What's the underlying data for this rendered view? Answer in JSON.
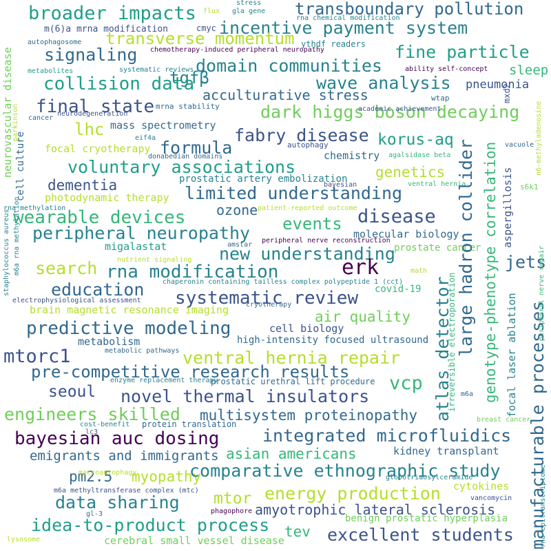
{
  "palette": {
    "dark_purple": "#440154",
    "indigo": "#3b528b",
    "blue": "#31688e",
    "teal": "#26828e",
    "green": "#1f9e89",
    "bright_green": "#35b779",
    "lime": "#6ece58",
    "light_lime": "#b5de2b",
    "yellow": "#fde725"
  },
  "words": [
    {
      "text": "broader impacts",
      "color": "#1f9e89"
    },
    {
      "text": "transboundary pollution",
      "color": "#31688e"
    },
    {
      "text": "incentive payment system",
      "color": "#26828e"
    },
    {
      "text": "transverse momentum",
      "color": "#b5de2b"
    },
    {
      "text": "fine particle",
      "color": "#1f9e89"
    },
    {
      "text": "signaling",
      "color": "#31688e"
    },
    {
      "text": "domain communities",
      "color": "#26828e"
    },
    {
      "text": "tgfβ",
      "color": "#26828e"
    },
    {
      "text": "collision data",
      "color": "#1f9e89"
    },
    {
      "text": "wave analysis",
      "color": "#26828e"
    },
    {
      "text": "acculturative stress",
      "color": "#31688e"
    },
    {
      "text": "final state",
      "color": "#3b528b"
    },
    {
      "text": "dark higgs boson decaying",
      "color": "#6ece58"
    },
    {
      "text": "lhc",
      "color": "#b5de2b"
    },
    {
      "text": "fabry disease",
      "color": "#3b528b"
    },
    {
      "text": "korus-aq",
      "color": "#1f9e89"
    },
    {
      "text": "formula",
      "color": "#31688e"
    },
    {
      "text": "voluntary associations",
      "color": "#1f9e89"
    },
    {
      "text": "genetics",
      "color": "#b5de2b"
    },
    {
      "text": "dementia",
      "color": "#3b528b"
    },
    {
      "text": "limited understanding",
      "color": "#31688e"
    },
    {
      "text": "ozone",
      "color": "#31688e"
    },
    {
      "text": "wearable devices",
      "color": "#35b779"
    },
    {
      "text": "events",
      "color": "#35b779"
    },
    {
      "text": "disease",
      "color": "#3b528b"
    },
    {
      "text": "peripheral neuropathy",
      "color": "#26828e"
    },
    {
      "text": "new understanding",
      "color": "#26828e"
    },
    {
      "text": "search",
      "color": "#b5de2b"
    },
    {
      "text": "rna modification",
      "color": "#26828e"
    },
    {
      "text": "erk",
      "color": "#440154"
    },
    {
      "text": "education",
      "color": "#31688e"
    },
    {
      "text": "systematic review",
      "color": "#3b528b"
    },
    {
      "text": "predictive modeling",
      "color": "#31688e"
    },
    {
      "text": "air quality",
      "color": "#6ece58"
    },
    {
      "text": "mtorc1",
      "color": "#3b528b"
    },
    {
      "text": "ventral hernia repair",
      "color": "#b5de2b"
    },
    {
      "text": "pre-competitive research results",
      "color": "#31688e"
    },
    {
      "text": "vcp",
      "color": "#35b779"
    },
    {
      "text": "seoul",
      "color": "#3b528b"
    },
    {
      "text": "novel thermal insulators",
      "color": "#3b528b"
    },
    {
      "text": "engineers skilled",
      "color": "#6ece58"
    },
    {
      "text": "multisystem proteinopathy",
      "color": "#31688e"
    },
    {
      "text": "bayesian auc dosing",
      "color": "#440154"
    },
    {
      "text": "integrated microfluidics",
      "color": "#31688e"
    },
    {
      "text": "emigrants and immigrants",
      "color": "#31688e"
    },
    {
      "text": "asian americans",
      "color": "#35b779"
    },
    {
      "text": "pm2.5",
      "color": "#31688e"
    },
    {
      "text": "myopathy",
      "color": "#b5de2b"
    },
    {
      "text": "comparative ethnographic study",
      "color": "#26828e"
    },
    {
      "text": "mtor",
      "color": "#b5de2b"
    },
    {
      "text": "energy production",
      "color": "#b5de2b"
    },
    {
      "text": "data sharing",
      "color": "#26828e"
    },
    {
      "text": "amyotrophic lateral sclerosis",
      "color": "#3b528b"
    },
    {
      "text": "idea-to-product process",
      "color": "#1f9e89"
    },
    {
      "text": "tev",
      "color": "#35b779"
    },
    {
      "text": "excellent students",
      "color": "#3b528b"
    },
    {
      "text": "manufacturable processes",
      "color": "#31688e"
    },
    {
      "text": "large hadron collider",
      "color": "#31688e"
    },
    {
      "text": "atlas detector",
      "color": "#26828e"
    },
    {
      "text": "genotype-phenotype correlation",
      "color": "#35b779"
    },
    {
      "text": "jets",
      "color": "#31688e"
    },
    {
      "text": "sleep",
      "color": "#35b779"
    },
    {
      "text": "pneumonia",
      "color": "#3b528b"
    },
    {
      "text": "m(6)a mrna modification",
      "color": "#3b528b"
    },
    {
      "text": "cmyc",
      "color": "#3b528b"
    },
    {
      "text": "chemotherapy-induced peripheral neuropathy",
      "color": "#440154"
    },
    {
      "text": "ythdf readers",
      "color": "#26828e"
    },
    {
      "text": "mass spectrometry",
      "color": "#31688e"
    },
    {
      "text": "focal cryotherapy",
      "color": "#b5de2b"
    },
    {
      "text": "chemistry",
      "color": "#31688e"
    },
    {
      "text": "prostatic artery embolization",
      "color": "#26828e"
    },
    {
      "text": "photodynamic therapy",
      "color": "#b5de2b"
    },
    {
      "text": "molecular biology",
      "color": "#31688e"
    },
    {
      "text": "prostate cancer",
      "color": "#6ece58"
    },
    {
      "text": "migalastat",
      "color": "#1f9e89"
    },
    {
      "text": "brain magnetic resonance imaging",
      "color": "#b5de2b"
    },
    {
      "text": "covid-19",
      "color": "#35b779"
    },
    {
      "text": "cell biology",
      "color": "#3b528b"
    },
    {
      "text": "metabolism",
      "color": "#31688e"
    },
    {
      "text": "high-intensity focused ultrasound",
      "color": "#31688e"
    },
    {
      "text": "kidney transplant",
      "color": "#31688e"
    },
    {
      "text": "cytokines",
      "color": "#b5de2b"
    },
    {
      "text": "benign prostatic hyperplasia",
      "color": "#6ece58"
    },
    {
      "text": "cerebral small vessel disease",
      "color": "#6ece58"
    },
    {
      "text": "focal laser ablation",
      "color": "#26828e"
    },
    {
      "text": "aspergillosis",
      "color": "#3b528b"
    },
    {
      "text": "irreversible electroporation",
      "color": "#35b779"
    },
    {
      "text": "protein translation",
      "color": "#31688e"
    },
    {
      "text": "prostatic urethral lift procedure",
      "color": "#31688e"
    },
    {
      "text": "neurovascular disease",
      "color": "#6ece58"
    },
    {
      "text": "cell culture",
      "color": "#31688e"
    },
    {
      "text": "stress",
      "color": "#26828e"
    },
    {
      "text": "flux",
      "color": "#b5de2b"
    },
    {
      "text": "gla gene",
      "color": "#26828e"
    },
    {
      "text": "rna chemical modification",
      "color": "#26828e"
    },
    {
      "text": "autophagosome",
      "color": "#31688e"
    },
    {
      "text": "metabolites",
      "color": "#1f9e89"
    },
    {
      "text": "systematic reviews",
      "color": "#26828e"
    },
    {
      "text": "ability self-concept",
      "color": "#440154"
    },
    {
      "text": "wtap",
      "color": "#31688e"
    },
    {
      "text": "mrna stability",
      "color": "#31688e"
    },
    {
      "text": "neurodegeneration",
      "color": "#3b528b"
    },
    {
      "text": "cancer",
      "color": "#31688e"
    },
    {
      "text": "academic achievement",
      "color": "#3b528b"
    },
    {
      "text": "eif4a",
      "color": "#26828e"
    },
    {
      "text": "autophagy",
      "color": "#3b528b"
    },
    {
      "text": "agalsidase beta",
      "color": "#35b779"
    },
    {
      "text": "donabedian domains",
      "color": "#31688e"
    },
    {
      "text": "vacuole",
      "color": "#31688e"
    },
    {
      "text": "mxd2",
      "color": "#3b528b"
    },
    {
      "text": "bayesian",
      "color": "#3b528b"
    },
    {
      "text": "ventral hernia",
      "color": "#35b779"
    },
    {
      "text": "s6k1",
      "color": "#6ece58"
    },
    {
      "text": "rna methylation",
      "color": "#26828e"
    },
    {
      "text": "patient-reported outcome",
      "color": "#b5de2b"
    },
    {
      "text": "amstar",
      "color": "#31688e"
    },
    {
      "text": "peripheral nerve reconstruction",
      "color": "#440154"
    },
    {
      "text": "nutrient signaling",
      "color": "#b5de2b"
    },
    {
      "text": "math",
      "color": "#b5de2b"
    },
    {
      "text": "chaperonin containing tailless complex polypeptide 1 (cct)",
      "color": "#26828e"
    },
    {
      "text": "electrophysiological assessment",
      "color": "#3b528b"
    },
    {
      "text": "cryotherapy",
      "color": "#31688e"
    },
    {
      "text": "metabolic pathways",
      "color": "#31688e"
    },
    {
      "text": "enzyme replacement therapy",
      "color": "#26828e"
    },
    {
      "text": "m6a",
      "color": "#31688e"
    },
    {
      "text": "cost-benefit",
      "color": "#26828e"
    },
    {
      "text": "lc3",
      "color": "#31688e"
    },
    {
      "text": "breast cancer",
      "color": "#6ece58"
    },
    {
      "text": "macroautophagy",
      "color": "#b5de2b"
    },
    {
      "text": "globotriaosylceramide",
      "color": "#26828e"
    },
    {
      "text": "m6a methyltransferase complex (mtc)",
      "color": "#3b528b"
    },
    {
      "text": "vancomycin",
      "color": "#3b528b"
    },
    {
      "text": "phagophore",
      "color": "#440154"
    },
    {
      "text": "gl-3",
      "color": "#31688e"
    },
    {
      "text": "lysosome",
      "color": "#b5de2b"
    },
    {
      "text": "staphylococcus aureus",
      "color": "#26828e"
    },
    {
      "text": "m6a rna methylation",
      "color": "#26828e"
    },
    {
      "text": "rna epitranscriptome",
      "color": "#26828e"
    },
    {
      "text": "peripheral nerve repair",
      "color": "#35b779"
    },
    {
      "text": "n6-methyladenosine",
      "color": "#b5de2b"
    },
    {
      "text": "parkinson",
      "color": "#b5de2b"
    }
  ]
}
